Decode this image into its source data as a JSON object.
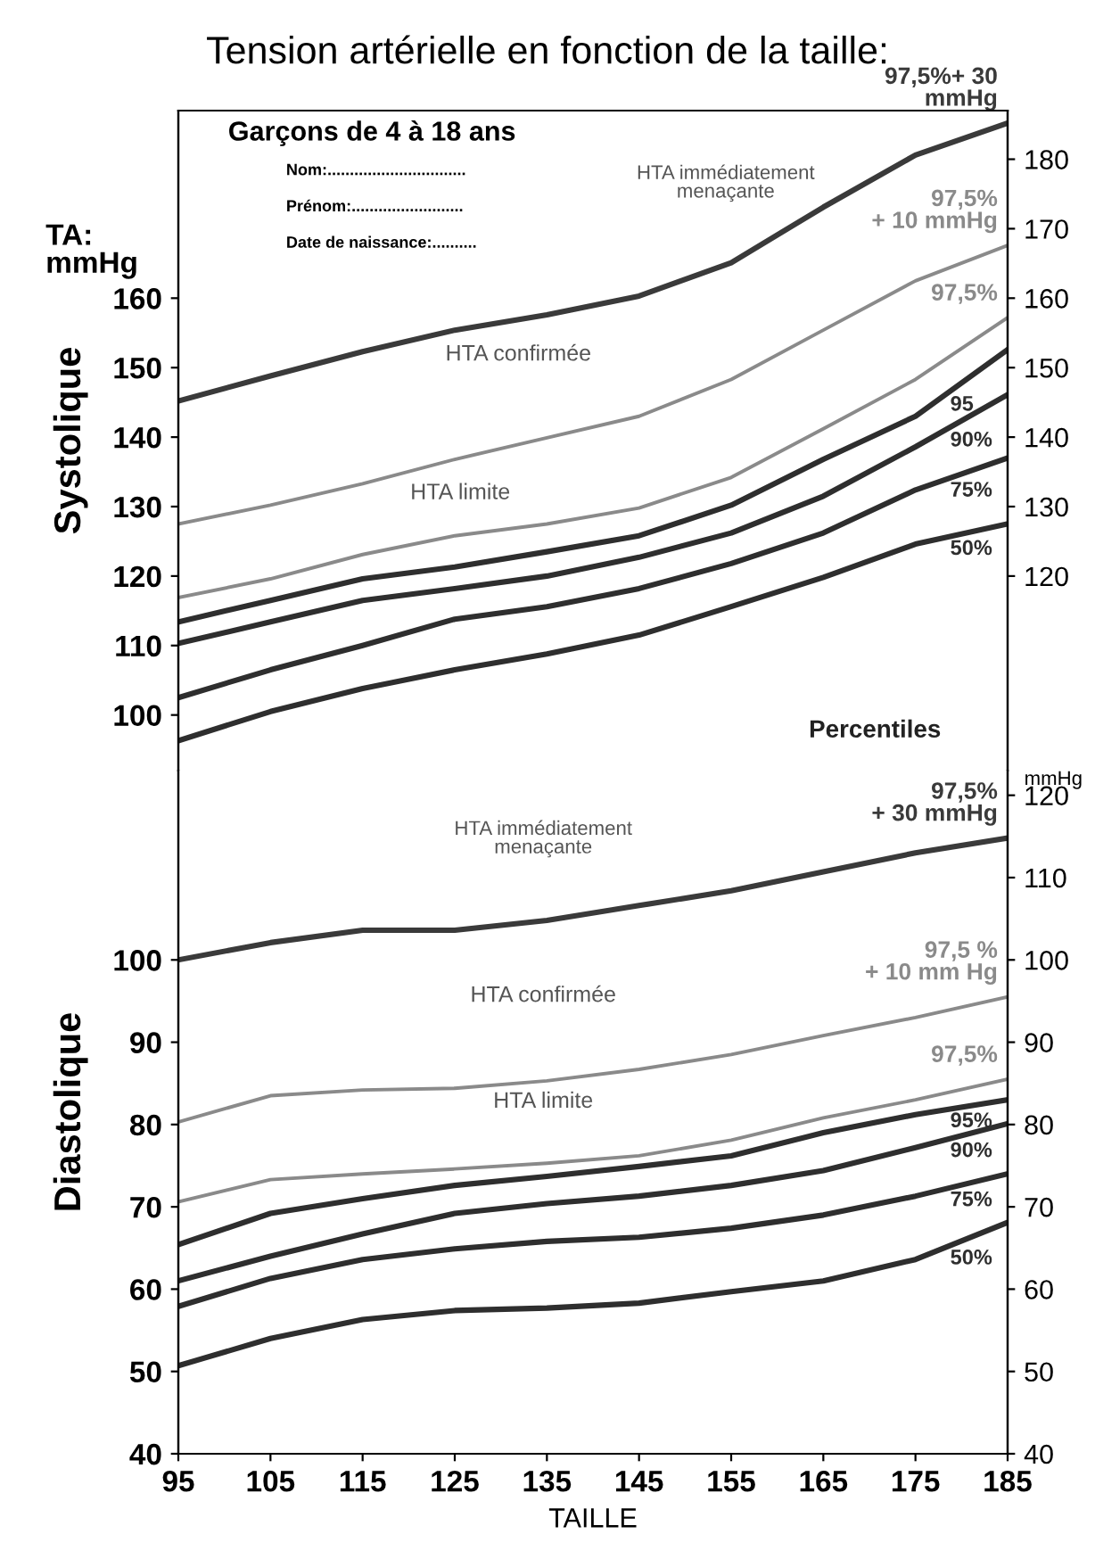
{
  "chart_data": [
    {
      "type": "line",
      "title": "Tension artérielle en fonction de la taille:",
      "subtitle": "Garçons de 4 à 18 ans",
      "ylabel": "Systolique",
      "annotations": [
        "Nom:...............................",
        "Prénom:.........................",
        "Date de naissance:..........",
        "TA:\nmmHg",
        "HTA confirmée",
        "HTA limite",
        "HTA immédiatement\nmenaçante",
        "Percentiles"
      ],
      "x": [
        95,
        105,
        115,
        125,
        135,
        145,
        155,
        165,
        175,
        185
      ],
      "xlim": [
        95,
        185
      ],
      "xticks": [
        95,
        105,
        115,
        125,
        135,
        145,
        155,
        165,
        175,
        185
      ],
      "tick_labels": "y",
      "ylim": [
        92,
        187
      ],
      "yticks": [
        100,
        110,
        120,
        130,
        140,
        150,
        160
      ],
      "y2lim": [
        92,
        187
      ],
      "y2ticks": [
        120,
        130,
        140,
        150,
        160,
        170,
        180
      ],
      "series": [
        {
          "name": "97,5%+ 30\nmmHg",
          "color": "#3a3a3a",
          "values": [
            145.2,
            148.8,
            152.3,
            155.4,
            157.6,
            160.3,
            165.1,
            173.1,
            180.6,
            185.2
          ]
        },
        {
          "name": "97,5%\n+ 10 mmHg",
          "color": "#8a8a8a",
          "values": [
            127.5,
            130.2,
            133.3,
            136.8,
            139.9,
            143,
            148.3,
            155.4,
            162.5,
            167.6
          ]
        },
        {
          "name": "97,5%",
          "color": "#8a8a8a",
          "values": [
            116.9,
            119.6,
            123.1,
            125.8,
            127.5,
            129.8,
            134.2,
            141.2,
            148.3,
            157.2
          ]
        },
        {
          "name": "95",
          "color": "#2e2e2e",
          "values": [
            113.4,
            116.5,
            119.6,
            121.3,
            123.5,
            125.8,
            130.2,
            136.8,
            143,
            152.6
          ]
        },
        {
          "name": "90%",
          "color": "#2e2e2e",
          "values": [
            110.3,
            113.4,
            116.5,
            118.2,
            120,
            122.7,
            126.2,
            131.5,
            138.6,
            146.1
          ]
        },
        {
          "name": "75%",
          "color": "#2e2e2e",
          "values": [
            102.5,
            106.5,
            110,
            113.8,
            115.6,
            118.2,
            121.8,
            126.2,
            132.4,
            137
          ]
        },
        {
          "name": "50%",
          "color": "#2e2e2e",
          "values": [
            96.3,
            100.5,
            103.8,
            106.5,
            108.8,
            111.5,
            115.6,
            119.8,
            124.6,
            127.5
          ]
        }
      ]
    },
    {
      "type": "line",
      "xlabel": "TAILLE",
      "ylabel": "Diastolique",
      "y2label": "mmHg",
      "annotations": [
        "HTA immédiatement\nmenaçante",
        "HTA confirmée",
        "HTA limite"
      ],
      "x": [
        95,
        105,
        115,
        125,
        135,
        145,
        155,
        165,
        175,
        185
      ],
      "xlim": [
        95,
        185
      ],
      "xticks": [
        95,
        105,
        115,
        125,
        135,
        145,
        155,
        165,
        175,
        185
      ],
      "ylim": [
        40,
        123
      ],
      "yticks": [
        40,
        50,
        60,
        70,
        80,
        90,
        100
      ],
      "y2lim": [
        40,
        123
      ],
      "y2ticks": [
        40,
        50,
        60,
        70,
        80,
        90,
        100,
        110,
        120
      ],
      "series": [
        {
          "name": "97,5%\n+ 30 mmHg",
          "color": "#3a3a3a",
          "values": [
            100,
            102.1,
            103.6,
            103.6,
            104.8,
            106.6,
            108.4,
            110.7,
            113,
            114.8
          ]
        },
        {
          "name": "97,5 %\n+ 10 mm Hg",
          "color": "#8a8a8a",
          "values": [
            80.3,
            83.5,
            84.2,
            84.4,
            85.3,
            86.7,
            88.5,
            90.8,
            93,
            95.5
          ]
        },
        {
          "name": "97,5%",
          "color": "#8a8a8a",
          "values": [
            70.6,
            73.3,
            74,
            74.6,
            75.3,
            76.2,
            78.1,
            80.8,
            83,
            85.5
          ]
        },
        {
          "name": "95%",
          "color": "#2e2e2e",
          "values": [
            65.4,
            69.2,
            71,
            72.6,
            73.7,
            74.9,
            76.2,
            79,
            81.2,
            83
          ]
        },
        {
          "name": "90%",
          "color": "#2e2e2e",
          "values": [
            61,
            64,
            66.7,
            69.2,
            70.4,
            71.3,
            72.6,
            74.4,
            77.2,
            80.1
          ]
        },
        {
          "name": "75%",
          "color": "#2e2e2e",
          "values": [
            57.9,
            61.3,
            63.6,
            64.9,
            65.8,
            66.3,
            67.4,
            69,
            71.3,
            74
          ]
        },
        {
          "name": "50%",
          "color": "#2e2e2e",
          "values": [
            50.7,
            54,
            56.3,
            57.4,
            57.7,
            58.3,
            59.7,
            61,
            63.6,
            68.1
          ]
        }
      ]
    }
  ]
}
